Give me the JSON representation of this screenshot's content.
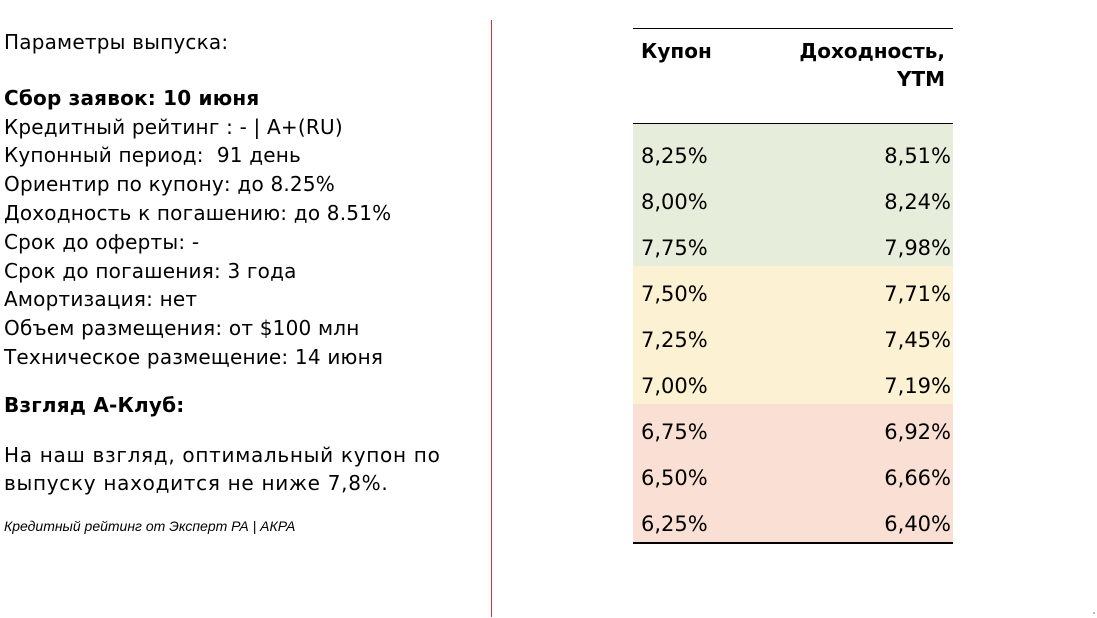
{
  "params": {
    "heading": "Параметры выпуска:",
    "book_building": "Сбор заявок: 10 июня",
    "items": [
      "Кредитный рейтинг : - | А+(RU)",
      "Купонный период:  91 день",
      "Ориентир по купону: до 8.25%",
      "Доходность к погашению: до 8.51%",
      "Срок до оферты: -",
      "Срок до погашения: 3 года",
      "Амортизация: нет",
      "Объем размещения: от $100 млн",
      "Техническое размещение: 14 июня"
    ]
  },
  "view": {
    "heading": "Взгляд А-Клуб:",
    "text": "На наш взгляд, оптимальный купон по выпуску находится не ниже 7,8%."
  },
  "footnote": "Кредитный рейтинг от Эксперт РА | АКРА",
  "table": {
    "col_coupon": "Купон",
    "col_ytm_line1": "Доходность,",
    "col_ytm_line2": "YTM",
    "rows": [
      {
        "coupon": "8,25%",
        "ytm": "8,51%",
        "zone": "green"
      },
      {
        "coupon": "8,00%",
        "ytm": "8,24%",
        "zone": "green"
      },
      {
        "coupon": "7,75%",
        "ytm": "7,98%",
        "zone": "green"
      },
      {
        "coupon": "7,50%",
        "ytm": "7,71%",
        "zone": "yellow"
      },
      {
        "coupon": "7,25%",
        "ytm": "7,45%",
        "zone": "yellow"
      },
      {
        "coupon": "7,00%",
        "ytm": "7,19%",
        "zone": "yellow"
      },
      {
        "coupon": "6,75%",
        "ytm": "6,92%",
        "zone": "red"
      },
      {
        "coupon": "6,50%",
        "ytm": "6,66%",
        "zone": "red"
      },
      {
        "coupon": "6,25%",
        "ytm": "6,40%",
        "zone": "red"
      }
    ]
  },
  "colors": {
    "green": "#e6eedb",
    "yellow": "#fdf1d3",
    "red": "#fae0d4",
    "divider": "#d5303b",
    "dash": "#e01e2b"
  }
}
